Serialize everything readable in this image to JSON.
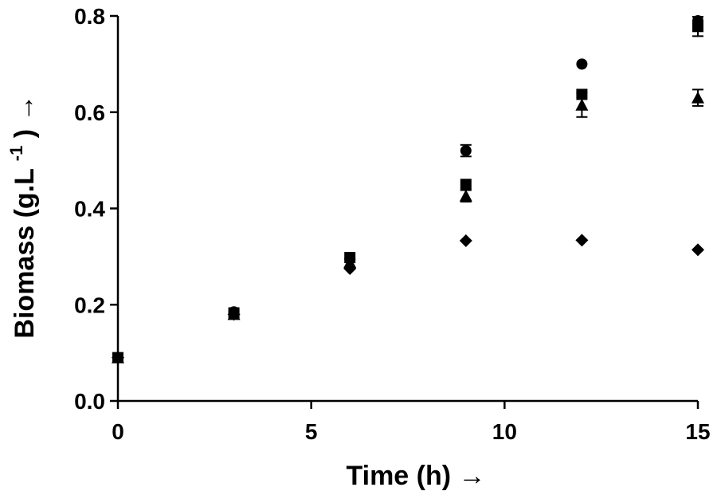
{
  "chart_data": {
    "type": "scatter",
    "title": "",
    "xlabel": "Time (h) →",
    "ylabel_main": "Biomass (g.L",
    "ylabel_sup": "-1",
    "ylabel_tail": ") →",
    "xlim": [
      0,
      15
    ],
    "ylim": [
      0,
      0.8
    ],
    "x_ticks": [
      0,
      5,
      10,
      15
    ],
    "x_tick_labels": [
      "0",
      "5",
      "10",
      "15"
    ],
    "y_ticks": [
      0,
      0.2,
      0.4,
      0.6,
      0.8
    ],
    "y_tick_labels": [
      "0.0",
      "0.2",
      "0.4",
      "0.6",
      "0.8"
    ],
    "grid": false,
    "legend": "none",
    "x": [
      0,
      3,
      6,
      9,
      12,
      15
    ],
    "series": [
      {
        "marker": "circle",
        "values": [
          0.09,
          0.185,
          0.295,
          0.52,
          0.7,
          0.79
        ],
        "errors": [
          0,
          0,
          0,
          0.012,
          0,
          0.008
        ]
      },
      {
        "marker": "square",
        "values": [
          0.09,
          0.183,
          0.298,
          0.45,
          0.637,
          0.778
        ],
        "errors": [
          0,
          0,
          0,
          0,
          0,
          0.02
        ]
      },
      {
        "marker": "triangle",
        "values": [
          0.09,
          0.18,
          0.288,
          0.426,
          0.615,
          0.63
        ],
        "errors": [
          0,
          0,
          0,
          0.012,
          0.025,
          0.017
        ]
      },
      {
        "marker": "diamond",
        "values": [
          0.09,
          0.18,
          0.275,
          0.333,
          0.334,
          0.314
        ],
        "errors": [
          0,
          0,
          0,
          0,
          0,
          0
        ]
      }
    ]
  }
}
